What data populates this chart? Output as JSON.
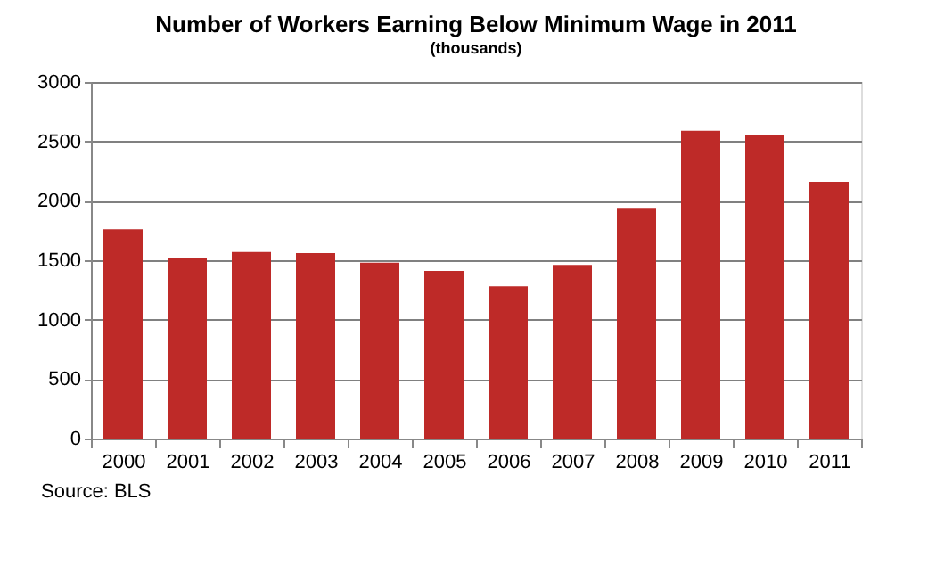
{
  "chart_data": {
    "type": "bar",
    "title": "Number of Workers Earning Below Minimum Wage in 2011",
    "subtitle": "(thousands)",
    "categories": [
      "2000",
      "2001",
      "2002",
      "2003",
      "2004",
      "2005",
      "2006",
      "2007",
      "2008",
      "2009",
      "2010",
      "2011"
    ],
    "values": [
      1760,
      1520,
      1570,
      1560,
      1480,
      1410,
      1280,
      1460,
      1940,
      2590,
      2550,
      2160
    ],
    "color": "#be2a28",
    "ylim": [
      0,
      3000
    ],
    "yticks": [
      0,
      500,
      1000,
      1500,
      2000,
      2500,
      3000
    ],
    "grid": "y",
    "annotations": [
      "Source:  BLS"
    ]
  }
}
